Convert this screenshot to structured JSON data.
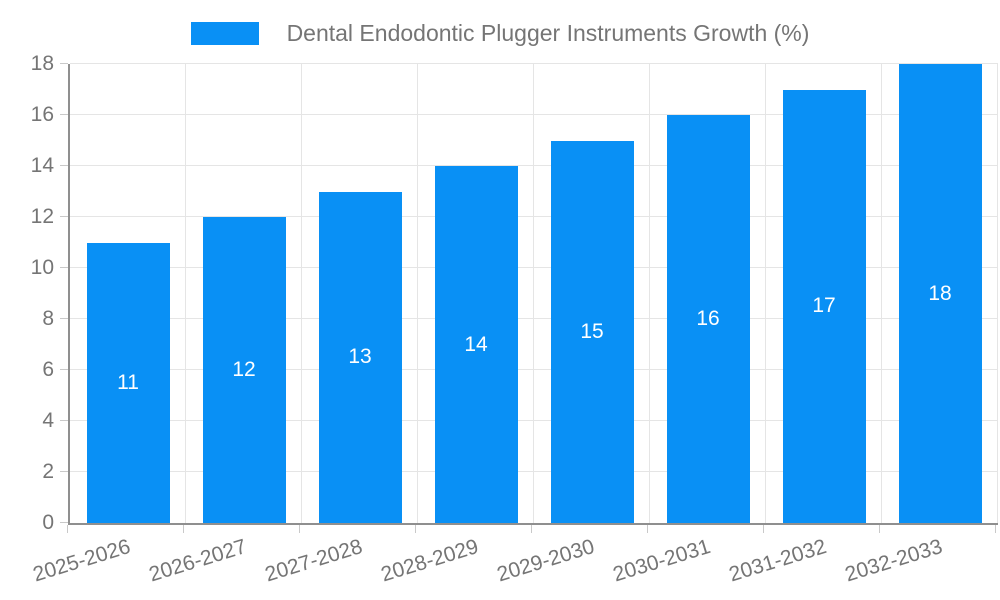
{
  "chart_data": {
    "type": "bar",
    "title": "Dental Endodontic Plugger Instruments Growth (%)",
    "categories": [
      "2025-2026",
      "2026-2027",
      "2027-2028",
      "2028-2029",
      "2029-2030",
      "2030-2031",
      "2031-2032",
      "2032-2033"
    ],
    "values": [
      11,
      12,
      13,
      14,
      15,
      16,
      17,
      18
    ],
    "xlabel": "",
    "ylabel": "",
    "ylim": [
      0,
      18
    ],
    "ytick_step": 2,
    "yticks": [
      0,
      2,
      4,
      6,
      8,
      10,
      12,
      14,
      16,
      18
    ],
    "grid": true,
    "legend_position": "top-center",
    "colors": {
      "bar": "#0990f5",
      "value_label": "#ffffff",
      "axis_text": "#757575",
      "grid_line": "#e5e5e5",
      "axis_line": "#8f8f8f",
      "tick_mark": "#c9c9c9",
      "background": "#ffffff"
    }
  }
}
